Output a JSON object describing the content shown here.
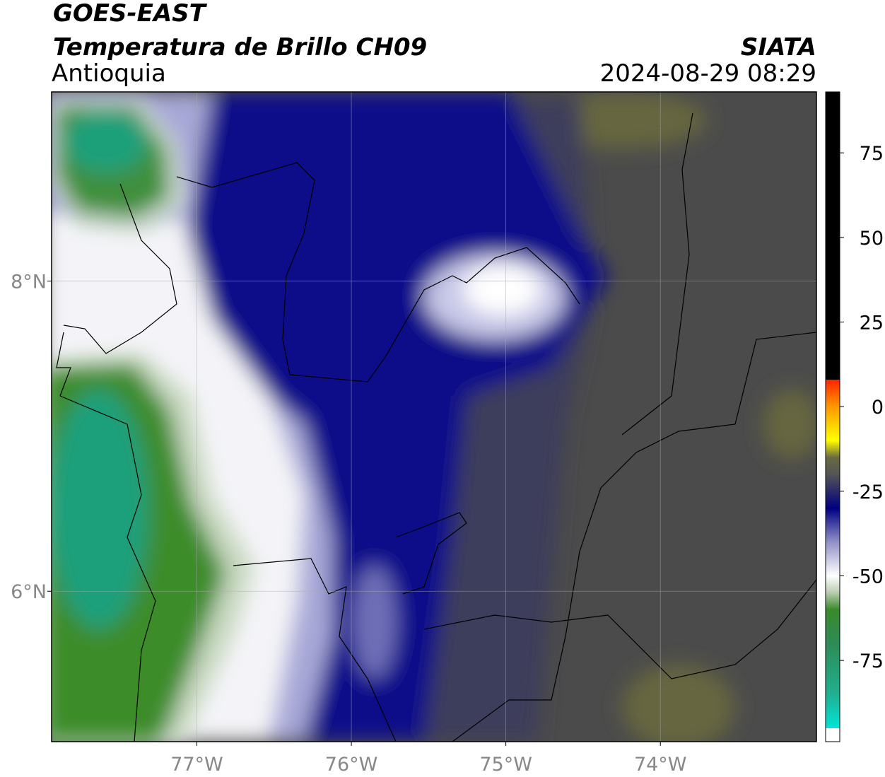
{
  "header": {
    "title": "GOES-EAST",
    "subtitle": "Temperatura de Brillo CH09",
    "region": "Antioquia",
    "source": "SIATA",
    "datetime": "2024-08-29 08:29"
  },
  "map": {
    "xlim": [
      -77.94,
      -72.99
    ],
    "ylim": [
      5.03,
      9.22
    ],
    "xticks": [
      {
        "value": -77,
        "label": "77°W"
      },
      {
        "value": -76,
        "label": "76°W"
      },
      {
        "value": -75,
        "label": "75°W"
      },
      {
        "value": -74,
        "label": "74°W"
      }
    ],
    "yticks": [
      {
        "value": 8,
        "label": "8°N"
      },
      {
        "value": 6,
        "label": "6°N"
      }
    ],
    "grid": true
  },
  "colorbar": {
    "clim": [
      -99,
      93
    ],
    "ticks": [
      75,
      50,
      25,
      0,
      -25,
      -50,
      -75
    ],
    "colorscale": [
      [
        -99,
        "#ffffff"
      ],
      [
        -95,
        "#ffffff"
      ],
      [
        -95,
        "#00e5d8"
      ],
      [
        -85,
        "#20b090"
      ],
      [
        -70,
        "#2e8b57"
      ],
      [
        -60,
        "#3a8a2a"
      ],
      [
        -55,
        "#b8ccb0"
      ],
      [
        -50,
        "#ffffff"
      ],
      [
        -40,
        "#9090c8"
      ],
      [
        -30,
        "#000080"
      ],
      [
        -25,
        "#2a2a6a"
      ],
      [
        -20,
        "#555555"
      ],
      [
        -15,
        "#6a6a40"
      ],
      [
        -10,
        "#ffff00"
      ],
      [
        0,
        "#ff9900"
      ],
      [
        8,
        "#ff2200"
      ],
      [
        8,
        "#000000"
      ],
      [
        93,
        "#000000"
      ]
    ]
  }
}
